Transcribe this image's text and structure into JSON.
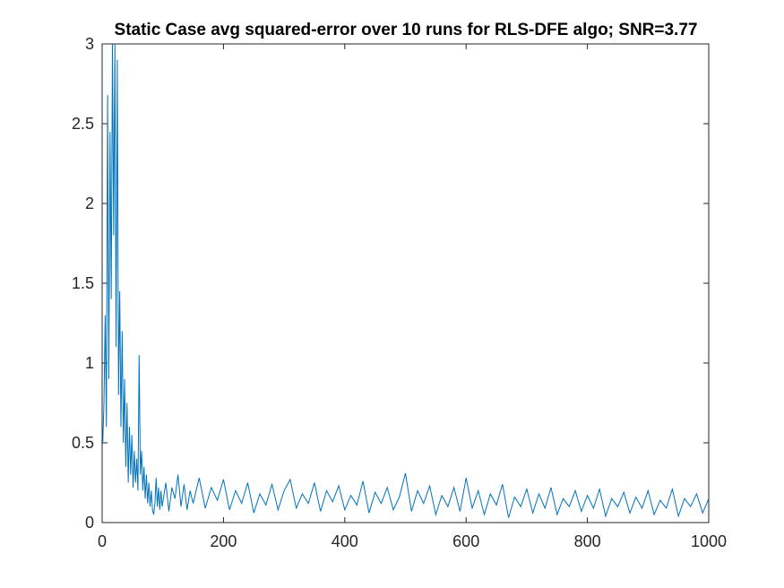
{
  "chart_data": {
    "type": "line",
    "title": "Static Case avg squared-error over 10 runs for RLS-DFE algo; SNR=3.77",
    "xlabel": "",
    "ylabel": "",
    "xlim": [
      0,
      1000
    ],
    "ylim": [
      0,
      3
    ],
    "xticks": [
      0,
      200,
      400,
      600,
      800,
      1000
    ],
    "xtick_labels": [
      "0",
      "200",
      "400",
      "600",
      "800",
      "1000"
    ],
    "yticks": [
      0,
      0.5,
      1,
      1.5,
      2,
      2.5,
      3
    ],
    "ytick_labels": [
      "0",
      "0.5",
      "1",
      "1.5",
      "2",
      "2.5",
      "3"
    ],
    "grid": false,
    "legend": "none",
    "series_color": "#0072BD",
    "series": [
      {
        "x": [
          1,
          3,
          5,
          7,
          9,
          11,
          13,
          15,
          17,
          19,
          21,
          23,
          25,
          27,
          29,
          31,
          33,
          35,
          37,
          39,
          41,
          43,
          45,
          47,
          49,
          51,
          53,
          55,
          57,
          59,
          61,
          63,
          65,
          67,
          69,
          71,
          73,
          75,
          77,
          79,
          81,
          83,
          85,
          87,
          89,
          91,
          93,
          95,
          97,
          99,
          105,
          110,
          115,
          120,
          125,
          130,
          135,
          140,
          145,
          150,
          160,
          170,
          180,
          190,
          200,
          210,
          220,
          230,
          240,
          250,
          260,
          270,
          280,
          290,
          300,
          310,
          320,
          330,
          340,
          350,
          360,
          370,
          380,
          390,
          400,
          410,
          420,
          430,
          440,
          450,
          460,
          470,
          480,
          490,
          500,
          510,
          520,
          530,
          540,
          550,
          560,
          570,
          580,
          590,
          600,
          610,
          620,
          630,
          640,
          650,
          660,
          670,
          680,
          690,
          700,
          710,
          720,
          730,
          740,
          750,
          760,
          770,
          780,
          790,
          800,
          810,
          820,
          830,
          840,
          850,
          860,
          870,
          880,
          890,
          900,
          910,
          920,
          930,
          940,
          950,
          960,
          970,
          980,
          990,
          1000
        ],
        "values": [
          0.5,
          0.75,
          1.3,
          0.6,
          2.68,
          0.9,
          2.45,
          1.4,
          3.0,
          1.8,
          3.0,
          1.1,
          2.9,
          0.8,
          1.45,
          0.6,
          1.2,
          0.5,
          0.9,
          0.35,
          0.75,
          0.25,
          0.6,
          0.3,
          0.55,
          0.22,
          0.45,
          0.25,
          0.4,
          0.2,
          1.05,
          0.3,
          0.45,
          0.2,
          0.35,
          0.15,
          0.3,
          0.12,
          0.25,
          0.1,
          0.2,
          0.08,
          0.05,
          0.12,
          0.28,
          0.1,
          0.22,
          0.08,
          0.2,
          0.1,
          0.25,
          0.07,
          0.22,
          0.15,
          0.3,
          0.1,
          0.24,
          0.08,
          0.2,
          0.12,
          0.28,
          0.09,
          0.22,
          0.14,
          0.27,
          0.08,
          0.2,
          0.12,
          0.25,
          0.06,
          0.18,
          0.11,
          0.24,
          0.08,
          0.2,
          0.27,
          0.09,
          0.18,
          0.12,
          0.25,
          0.07,
          0.2,
          0.13,
          0.23,
          0.08,
          0.17,
          0.11,
          0.26,
          0.06,
          0.19,
          0.12,
          0.22,
          0.08,
          0.16,
          0.31,
          0.07,
          0.2,
          0.12,
          0.23,
          0.05,
          0.17,
          0.1,
          0.22,
          0.07,
          0.28,
          0.09,
          0.2,
          0.05,
          0.18,
          0.11,
          0.24,
          0.03,
          0.16,
          0.1,
          0.21,
          0.06,
          0.18,
          0.09,
          0.22,
          0.05,
          0.15,
          0.1,
          0.2,
          0.07,
          0.17,
          0.09,
          0.21,
          0.04,
          0.15,
          0.1,
          0.19,
          0.06,
          0.16,
          0.09,
          0.2,
          0.05,
          0.14,
          0.09,
          0.21,
          0.04,
          0.15,
          0.1,
          0.18,
          0.06,
          0.15
        ]
      }
    ]
  }
}
